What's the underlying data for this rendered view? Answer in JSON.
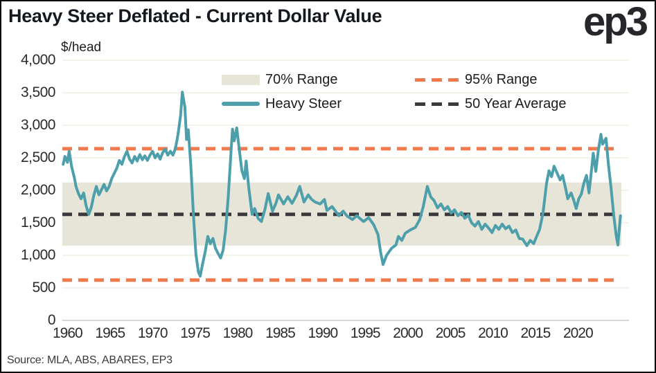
{
  "header": {
    "title": "Heavy Steer Deflated - Current Dollar Value",
    "logo_text": "ep3"
  },
  "footer": {
    "source": "Source: MLA, ABS, ABARES, EP3"
  },
  "colors": {
    "teal": "#4d9fab",
    "orange": "#f2794b",
    "band": "#e7e5d8",
    "avg": "#3a3a3c",
    "grid": "#f0efe3",
    "baseline": "#d7d7d3",
    "text": "#2b2b2b"
  },
  "chart_data": {
    "type": "line",
    "title": "Heavy Steer Deflated - Current Dollar Value",
    "ylabel": "$/head",
    "xlabel": "",
    "grid": true,
    "legend_position": "top-inside",
    "xlim": [
      1959.4,
      2026.0
    ],
    "ylim": [
      0,
      4000
    ],
    "x_ticks": [
      1960,
      1965,
      1970,
      1975,
      1980,
      1985,
      1990,
      1995,
      2000,
      2005,
      2010,
      2015,
      2020
    ],
    "y_ticks": [
      0,
      500,
      1000,
      1500,
      2000,
      2500,
      3000,
      3500,
      4000
    ],
    "legend": [
      {
        "label": "70% Range",
        "key": "band"
      },
      {
        "label": "95% Range",
        "key": "orange-dash"
      },
      {
        "label": "Heavy Steer",
        "key": "teal-line"
      },
      {
        "label": "50 Year Average",
        "key": "black-dash"
      }
    ],
    "band_70_range": {
      "low": 1150,
      "high": 2120
    },
    "range_95": {
      "low": 620,
      "high": 2640
    },
    "avg_50_year": 1630,
    "series": [
      {
        "name": "Heavy Steer",
        "points": [
          [
            1959.5,
            2400
          ],
          [
            1959.7,
            2520
          ],
          [
            1960.0,
            2430
          ],
          [
            1960.2,
            2600
          ],
          [
            1960.5,
            2360
          ],
          [
            1960.8,
            2200
          ],
          [
            1961.0,
            2060
          ],
          [
            1961.3,
            1950
          ],
          [
            1961.6,
            1870
          ],
          [
            1961.9,
            1960
          ],
          [
            1962.2,
            1760
          ],
          [
            1962.5,
            1630
          ],
          [
            1962.8,
            1740
          ],
          [
            1963.1,
            1920
          ],
          [
            1963.4,
            2060
          ],
          [
            1963.7,
            1930
          ],
          [
            1964.0,
            2010
          ],
          [
            1964.3,
            2090
          ],
          [
            1964.6,
            1990
          ],
          [
            1964.9,
            2060
          ],
          [
            1965.2,
            2180
          ],
          [
            1965.5,
            2260
          ],
          [
            1965.8,
            2340
          ],
          [
            1966.1,
            2460
          ],
          [
            1966.4,
            2400
          ],
          [
            1966.7,
            2520
          ],
          [
            1967.0,
            2600
          ],
          [
            1967.3,
            2480
          ],
          [
            1967.6,
            2420
          ],
          [
            1967.9,
            2520
          ],
          [
            1968.2,
            2450
          ],
          [
            1968.5,
            2550
          ],
          [
            1968.8,
            2470
          ],
          [
            1969.1,
            2530
          ],
          [
            1969.4,
            2460
          ],
          [
            1969.7,
            2540
          ],
          [
            1970.0,
            2600
          ],
          [
            1970.3,
            2500
          ],
          [
            1970.6,
            2560
          ],
          [
            1970.9,
            2480
          ],
          [
            1971.2,
            2580
          ],
          [
            1971.5,
            2630
          ],
          [
            1971.8,
            2540
          ],
          [
            1972.1,
            2600
          ],
          [
            1972.4,
            2540
          ],
          [
            1972.7,
            2650
          ],
          [
            1973.0,
            2860
          ],
          [
            1973.3,
            3150
          ],
          [
            1973.5,
            3510
          ],
          [
            1973.8,
            3280
          ],
          [
            1974.0,
            2780
          ],
          [
            1974.2,
            2930
          ],
          [
            1974.5,
            2380
          ],
          [
            1974.8,
            1650
          ],
          [
            1975.1,
            1020
          ],
          [
            1975.4,
            740
          ],
          [
            1975.6,
            680
          ],
          [
            1975.9,
            880
          ],
          [
            1976.2,
            1060
          ],
          [
            1976.5,
            1290
          ],
          [
            1976.8,
            1180
          ],
          [
            1977.1,
            1260
          ],
          [
            1977.4,
            1110
          ],
          [
            1977.7,
            1030
          ],
          [
            1978.0,
            960
          ],
          [
            1978.3,
            1080
          ],
          [
            1978.6,
            1400
          ],
          [
            1978.9,
            1900
          ],
          [
            1979.2,
            2540
          ],
          [
            1979.4,
            2940
          ],
          [
            1979.6,
            2760
          ],
          [
            1979.9,
            2960
          ],
          [
            1980.2,
            2620
          ],
          [
            1980.5,
            2300
          ],
          [
            1980.8,
            2180
          ],
          [
            1981.0,
            2450
          ],
          [
            1981.3,
            2050
          ],
          [
            1981.7,
            1630
          ],
          [
            1982.0,
            1720
          ],
          [
            1982.4,
            1570
          ],
          [
            1982.8,
            1520
          ],
          [
            1983.2,
            1700
          ],
          [
            1983.6,
            1950
          ],
          [
            1984.1,
            1680
          ],
          [
            1984.5,
            1800
          ],
          [
            1984.8,
            1930
          ],
          [
            1985.4,
            1790
          ],
          [
            1985.9,
            1900
          ],
          [
            1986.4,
            1800
          ],
          [
            1986.9,
            1920
          ],
          [
            1987.3,
            2060
          ],
          [
            1987.8,
            1820
          ],
          [
            1988.3,
            1930
          ],
          [
            1988.7,
            1860
          ],
          [
            1989.1,
            1820
          ],
          [
            1989.7,
            1790
          ],
          [
            1990.2,
            1860
          ],
          [
            1990.5,
            1690
          ],
          [
            1991.1,
            1750
          ],
          [
            1991.9,
            1610
          ],
          [
            1992.4,
            1680
          ],
          [
            1992.9,
            1600
          ],
          [
            1993.5,
            1550
          ],
          [
            1994.0,
            1610
          ],
          [
            1994.8,
            1520
          ],
          [
            1995.4,
            1580
          ],
          [
            1996.0,
            1470
          ],
          [
            1996.5,
            1320
          ],
          [
            1996.8,
            1050
          ],
          [
            1997.1,
            860
          ],
          [
            1997.5,
            1000
          ],
          [
            1998.1,
            1110
          ],
          [
            1998.6,
            1160
          ],
          [
            1998.9,
            1290
          ],
          [
            1999.3,
            1230
          ],
          [
            1999.7,
            1340
          ],
          [
            2000.3,
            1390
          ],
          [
            2000.9,
            1430
          ],
          [
            2001.4,
            1550
          ],
          [
            2001.8,
            1740
          ],
          [
            2002.3,
            2060
          ],
          [
            2002.7,
            1900
          ],
          [
            2003.1,
            1840
          ],
          [
            2003.5,
            1730
          ],
          [
            2003.9,
            1790
          ],
          [
            2004.3,
            1700
          ],
          [
            2004.7,
            1750
          ],
          [
            2005.1,
            1650
          ],
          [
            2005.5,
            1700
          ],
          [
            2005.9,
            1610
          ],
          [
            2006.3,
            1660
          ],
          [
            2006.7,
            1570
          ],
          [
            2007.1,
            1620
          ],
          [
            2007.5,
            1500
          ],
          [
            2007.9,
            1450
          ],
          [
            2008.3,
            1520
          ],
          [
            2008.7,
            1400
          ],
          [
            2009.1,
            1480
          ],
          [
            2009.5,
            1420
          ],
          [
            2009.9,
            1350
          ],
          [
            2010.3,
            1460
          ],
          [
            2010.7,
            1400
          ],
          [
            2011.1,
            1480
          ],
          [
            2011.5,
            1410
          ],
          [
            2011.9,
            1450
          ],
          [
            2012.3,
            1350
          ],
          [
            2012.7,
            1390
          ],
          [
            2013.1,
            1260
          ],
          [
            2013.5,
            1250
          ],
          [
            2014.0,
            1150
          ],
          [
            2014.4,
            1230
          ],
          [
            2014.8,
            1180
          ],
          [
            2015.2,
            1310
          ],
          [
            2015.5,
            1400
          ],
          [
            2015.9,
            1650
          ],
          [
            2016.3,
            2100
          ],
          [
            2016.6,
            2300
          ],
          [
            2016.9,
            2210
          ],
          [
            2017.2,
            2370
          ],
          [
            2017.5,
            2280
          ],
          [
            2017.9,
            2160
          ],
          [
            2018.2,
            2230
          ],
          [
            2018.5,
            2060
          ],
          [
            2018.8,
            1870
          ],
          [
            2019.2,
            1960
          ],
          [
            2019.5,
            1850
          ],
          [
            2019.8,
            1720
          ],
          [
            2020.1,
            1870
          ],
          [
            2020.4,
            1940
          ],
          [
            2020.7,
            2110
          ],
          [
            2021.0,
            2230
          ],
          [
            2021.3,
            1960
          ],
          [
            2021.6,
            2320
          ],
          [
            2021.8,
            2570
          ],
          [
            2022.1,
            2290
          ],
          [
            2022.4,
            2620
          ],
          [
            2022.7,
            2860
          ],
          [
            2022.9,
            2710
          ],
          [
            2023.1,
            2750
          ],
          [
            2023.3,
            2800
          ],
          [
            2023.6,
            2380
          ],
          [
            2023.9,
            2030
          ],
          [
            2024.2,
            1620
          ],
          [
            2024.5,
            1300
          ],
          [
            2024.7,
            1160
          ],
          [
            2025.0,
            1610
          ]
        ]
      }
    ]
  }
}
